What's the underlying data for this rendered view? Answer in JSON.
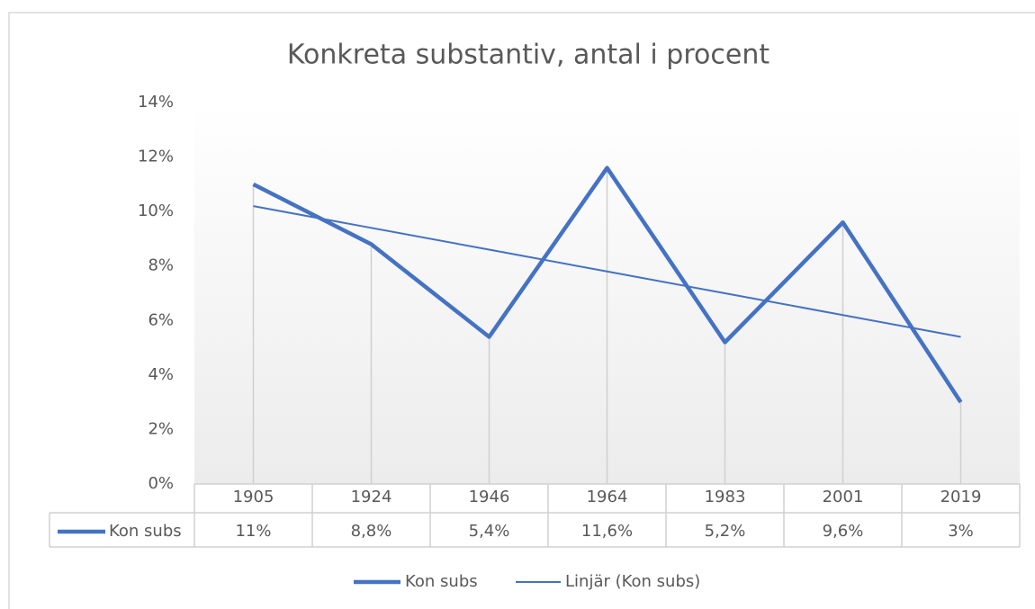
{
  "chart_data": {
    "type": "line",
    "title": "Konkreta substantiv, antal i procent",
    "categories": [
      "1905",
      "1924",
      "1946",
      "1964",
      "1983",
      "2001",
      "2019"
    ],
    "series": [
      {
        "name": "Kon subs",
        "color": "#4472c4",
        "values": [
          11,
          8.8,
          5.4,
          11.6,
          5.2,
          9.6,
          3
        ],
        "value_labels": [
          "11%",
          "8,8%",
          "5,4%",
          "11,6%",
          "5,2%",
          "9,6%",
          "3%"
        ]
      },
      {
        "name": "Linjär (Kon subs)",
        "color": "#4472c4",
        "values": [
          10.2,
          9.4,
          8.6,
          7.8,
          7.0,
          6.2,
          5.4
        ]
      }
    ],
    "ylim": [
      0,
      14
    ],
    "yticks": [
      {
        "value": 0,
        "label": "0%"
      },
      {
        "value": 2,
        "label": "2%"
      },
      {
        "value": 4,
        "label": "4%"
      },
      {
        "value": 6,
        "label": "6%"
      },
      {
        "value": 8,
        "label": "8%"
      },
      {
        "value": 10,
        "label": "10%"
      },
      {
        "value": 12,
        "label": "12%"
      },
      {
        "value": 14,
        "label": "14%"
      }
    ],
    "drop_lines": true,
    "data_table": true,
    "legend": "bottom"
  }
}
